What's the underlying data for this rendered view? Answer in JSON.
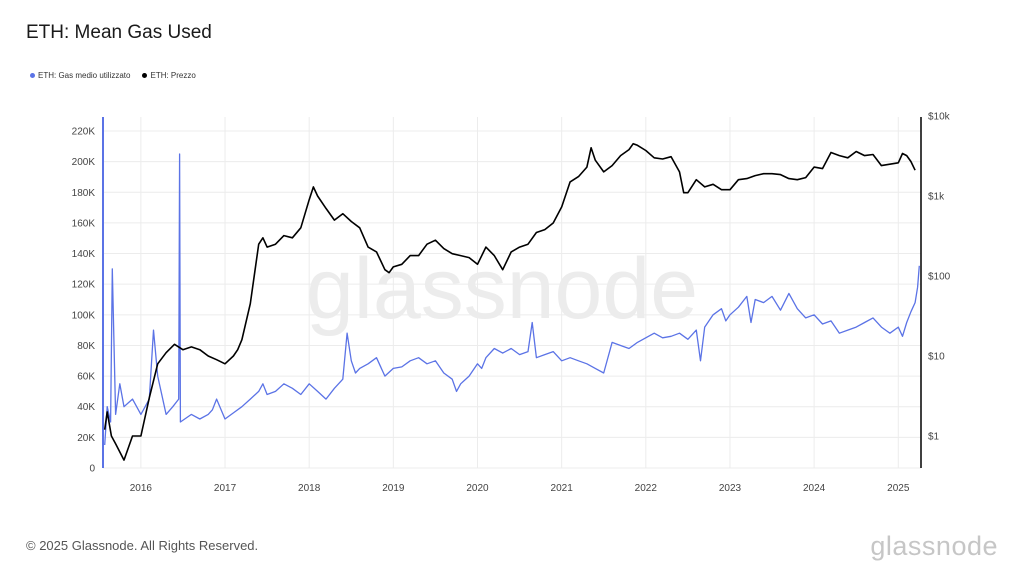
{
  "title": "ETH: Mean Gas Used",
  "footer": "© 2025 Glassnode. All Rights Reserved.",
  "brand": "glassnode",
  "watermark": "glassnode",
  "colors": {
    "gas": "#5b73e6",
    "price": "#000000",
    "grid": "#ececec"
  },
  "legend": [
    {
      "label": "ETH: Gas medio utilizzato",
      "color": "#5b73e6"
    },
    {
      "label": "ETH: Prezzo",
      "color": "#000000"
    }
  ],
  "chart_data": {
    "type": "line",
    "title": "ETH: Mean Gas Used",
    "grid": true,
    "legend_position": "top-left",
    "x_domain": [
      2015.55,
      2025.27
    ],
    "x_ticks": [
      "2016",
      "2017",
      "2018",
      "2019",
      "2020",
      "2021",
      "2022",
      "2023",
      "2024",
      "2025"
    ],
    "y_left": {
      "scale": "linear",
      "range": [
        0,
        220000
      ],
      "ticks": [
        {
          "v": 0,
          "label": "0"
        },
        {
          "v": 20000,
          "label": "20K"
        },
        {
          "v": 40000,
          "label": "40K"
        },
        {
          "v": 60000,
          "label": "60K"
        },
        {
          "v": 80000,
          "label": "80K"
        },
        {
          "v": 100000,
          "label": "100K"
        },
        {
          "v": 120000,
          "label": "120K"
        },
        {
          "v": 140000,
          "label": "140K"
        },
        {
          "v": 160000,
          "label": "160K"
        },
        {
          "v": 180000,
          "label": "180K"
        },
        {
          "v": 200000,
          "label": "200K"
        },
        {
          "v": 220000,
          "label": "220K"
        }
      ]
    },
    "y_right": {
      "scale": "log",
      "ticks": [
        {
          "v": 1,
          "label": "$1"
        },
        {
          "v": 10,
          "label": "$10"
        },
        {
          "v": 100,
          "label": "$100"
        },
        {
          "v": 1000,
          "label": "$1k"
        },
        {
          "v": 10000,
          "label": "$10k"
        }
      ]
    },
    "series": [
      {
        "name": "ETH: Gas medio utilizzato",
        "axis": "left",
        "x": [
          2015.57,
          2015.6,
          2015.64,
          2015.66,
          2015.7,
          2015.75,
          2015.8,
          2015.9,
          2016.0,
          2016.1,
          2016.15,
          2016.2,
          2016.3,
          2016.38,
          2016.45,
          2016.46,
          2016.47,
          2016.6,
          2016.7,
          2016.8,
          2016.85,
          2016.9,
          2017.0,
          2017.1,
          2017.2,
          2017.3,
          2017.4,
          2017.45,
          2017.5,
          2017.6,
          2017.7,
          2017.8,
          2017.9,
          2018.0,
          2018.1,
          2018.2,
          2018.3,
          2018.4,
          2018.45,
          2018.5,
          2018.55,
          2018.6,
          2018.7,
          2018.8,
          2018.9,
          2019.0,
          2019.1,
          2019.2,
          2019.3,
          2019.4,
          2019.5,
          2019.6,
          2019.7,
          2019.75,
          2019.8,
          2019.9,
          2020.0,
          2020.05,
          2020.1,
          2020.2,
          2020.3,
          2020.4,
          2020.5,
          2020.6,
          2020.65,
          2020.7,
          2020.8,
          2020.9,
          2021.0,
          2021.1,
          2021.2,
          2021.3,
          2021.4,
          2021.5,
          2021.6,
          2021.7,
          2021.8,
          2021.9,
          2022.0,
          2022.1,
          2022.2,
          2022.3,
          2022.4,
          2022.5,
          2022.6,
          2022.65,
          2022.7,
          2022.8,
          2022.9,
          2022.95,
          2023.0,
          2023.1,
          2023.2,
          2023.25,
          2023.3,
          2023.4,
          2023.5,
          2023.6,
          2023.7,
          2023.8,
          2023.9,
          2024.0,
          2024.1,
          2024.2,
          2024.3,
          2024.4,
          2024.5,
          2024.6,
          2024.7,
          2024.8,
          2024.9,
          2025.0,
          2025.05,
          2025.1,
          2025.15,
          2025.2,
          2025.23,
          2025.25
        ],
        "y": [
          15000,
          40000,
          30000,
          130000,
          35000,
          55000,
          40000,
          45000,
          35000,
          45000,
          90000,
          60000,
          35000,
          40000,
          45000,
          205000,
          30000,
          35000,
          32000,
          35000,
          38000,
          45000,
          32000,
          36000,
          40000,
          45000,
          50000,
          55000,
          48000,
          50000,
          55000,
          52000,
          48000,
          55000,
          50000,
          45000,
          52000,
          58000,
          88000,
          70000,
          62000,
          65000,
          68000,
          72000,
          60000,
          65000,
          66000,
          70000,
          72000,
          68000,
          70000,
          62000,
          58000,
          50000,
          55000,
          60000,
          68000,
          65000,
          72000,
          78000,
          75000,
          78000,
          74000,
          76000,
          95000,
          72000,
          74000,
          76000,
          70000,
          72000,
          70000,
          68000,
          65000,
          62000,
          82000,
          80000,
          78000,
          82000,
          85000,
          88000,
          85000,
          86000,
          88000,
          84000,
          90000,
          70000,
          92000,
          100000,
          104000,
          96000,
          100000,
          105000,
          112000,
          95000,
          110000,
          108000,
          112000,
          103000,
          114000,
          104000,
          98000,
          100000,
          94000,
          96000,
          88000,
          90000,
          92000,
          95000,
          98000,
          92000,
          88000,
          92000,
          86000,
          95000,
          102000,
          108000,
          118000,
          132000
        ]
      },
      {
        "name": "ETH: Prezzo",
        "axis": "right",
        "x": [
          2015.57,
          2015.6,
          2015.65,
          2015.7,
          2015.8,
          2015.9,
          2016.0,
          2016.1,
          2016.2,
          2016.3,
          2016.4,
          2016.5,
          2016.6,
          2016.7,
          2016.8,
          2016.9,
          2017.0,
          2017.1,
          2017.15,
          2017.2,
          2017.3,
          2017.4,
          2017.45,
          2017.5,
          2017.6,
          2017.7,
          2017.8,
          2017.9,
          2018.0,
          2018.05,
          2018.1,
          2018.2,
          2018.3,
          2018.4,
          2018.5,
          2018.6,
          2018.7,
          2018.8,
          2018.9,
          2018.95,
          2019.0,
          2019.1,
          2019.2,
          2019.3,
          2019.4,
          2019.5,
          2019.6,
          2019.7,
          2019.8,
          2019.9,
          2020.0,
          2020.1,
          2020.2,
          2020.3,
          2020.4,
          2020.5,
          2020.6,
          2020.7,
          2020.8,
          2020.9,
          2021.0,
          2021.1,
          2021.2,
          2021.3,
          2021.35,
          2021.4,
          2021.5,
          2021.6,
          2021.7,
          2021.8,
          2021.85,
          2021.9,
          2022.0,
          2022.1,
          2022.2,
          2022.3,
          2022.4,
          2022.45,
          2022.5,
          2022.6,
          2022.7,
          2022.8,
          2022.9,
          2023.0,
          2023.1,
          2023.2,
          2023.3,
          2023.4,
          2023.5,
          2023.6,
          2023.7,
          2023.8,
          2023.9,
          2024.0,
          2024.1,
          2024.2,
          2024.3,
          2024.4,
          2024.5,
          2024.6,
          2024.7,
          2024.8,
          2024.9,
          2025.0,
          2025.05,
          2025.1,
          2025.15,
          2025.2
        ],
        "y": [
          1.2,
          2.0,
          1.0,
          0.8,
          0.5,
          1.0,
          1.0,
          3,
          8,
          11,
          14,
          12,
          13,
          12,
          10,
          9,
          8,
          10,
          12,
          16,
          45,
          250,
          300,
          230,
          250,
          320,
          300,
          400,
          900,
          1300,
          1000,
          700,
          500,
          600,
          480,
          400,
          230,
          200,
          120,
          110,
          130,
          140,
          180,
          180,
          250,
          280,
          220,
          190,
          180,
          170,
          140,
          230,
          180,
          120,
          200,
          230,
          250,
          350,
          380,
          460,
          730,
          1500,
          1750,
          2300,
          4000,
          2800,
          2000,
          2400,
          3200,
          3800,
          4500,
          4300,
          3700,
          3000,
          2900,
          3100,
          2000,
          1100,
          1100,
          1600,
          1300,
          1400,
          1200,
          1200,
          1600,
          1650,
          1800,
          1900,
          1900,
          1850,
          1650,
          1600,
          1700,
          2300,
          2200,
          3500,
          3200,
          3000,
          3600,
          3200,
          3300,
          2400,
          2500,
          2600,
          3400,
          3200,
          2700,
          2100
        ]
      }
    ]
  }
}
